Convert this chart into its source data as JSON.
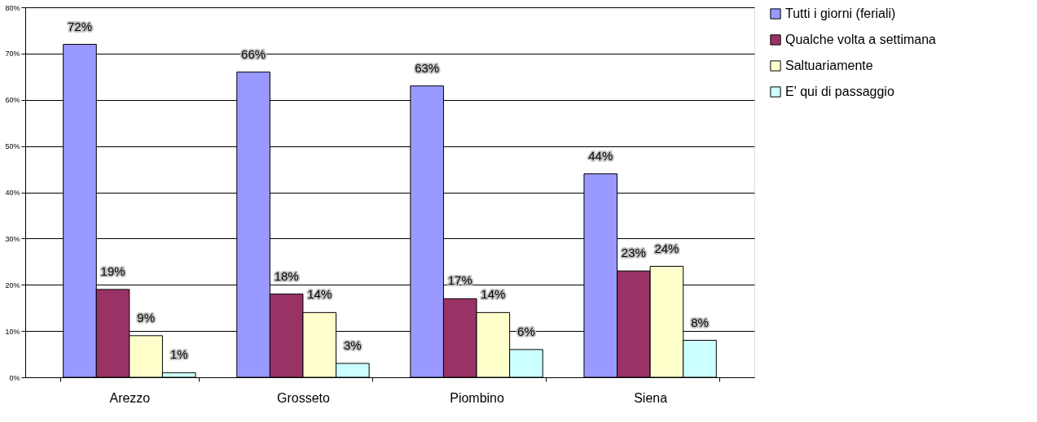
{
  "chart_data": {
    "type": "bar",
    "categories": [
      "Arezzo",
      "Grosseto",
      "Piombino",
      "Siena"
    ],
    "series": [
      {
        "name": "Tutti i giorni (feriali)",
        "color": "#9999ff",
        "values": [
          72,
          66,
          63,
          44
        ],
        "value_labels": [
          "72%",
          "66%",
          "63%",
          "44%"
        ]
      },
      {
        "name": "Qualche volta a settimana",
        "color": "#993366",
        "values": [
          19,
          18,
          17,
          23
        ],
        "value_labels": [
          "19%",
          "18%",
          "17%",
          "23%"
        ]
      },
      {
        "name": "Saltuariamente",
        "color": "#ffffcc",
        "values": [
          9,
          14,
          14,
          24
        ],
        "value_labels": [
          "9%",
          "14%",
          "14%",
          "24%"
        ]
      },
      {
        "name": "E' qui di passaggio",
        "color": "#ccffff",
        "values": [
          1,
          3,
          6,
          8
        ],
        "value_labels": [
          "1%",
          "3%",
          "6%",
          "8%"
        ]
      }
    ],
    "ylim": [
      0,
      80
    ],
    "yticks": [
      {
        "value": 0,
        "label": "0%"
      },
      {
        "value": 10,
        "label": "10%"
      },
      {
        "value": 20,
        "label": "20%"
      },
      {
        "value": 30,
        "label": "30%"
      },
      {
        "value": 40,
        "label": "40%"
      },
      {
        "value": 50,
        "label": "50%"
      },
      {
        "value": 60,
        "label": "60%"
      },
      {
        "value": 70,
        "label": "70%"
      },
      {
        "value": 80,
        "label": "80%"
      }
    ],
    "grid": "y",
    "legend": "right"
  }
}
